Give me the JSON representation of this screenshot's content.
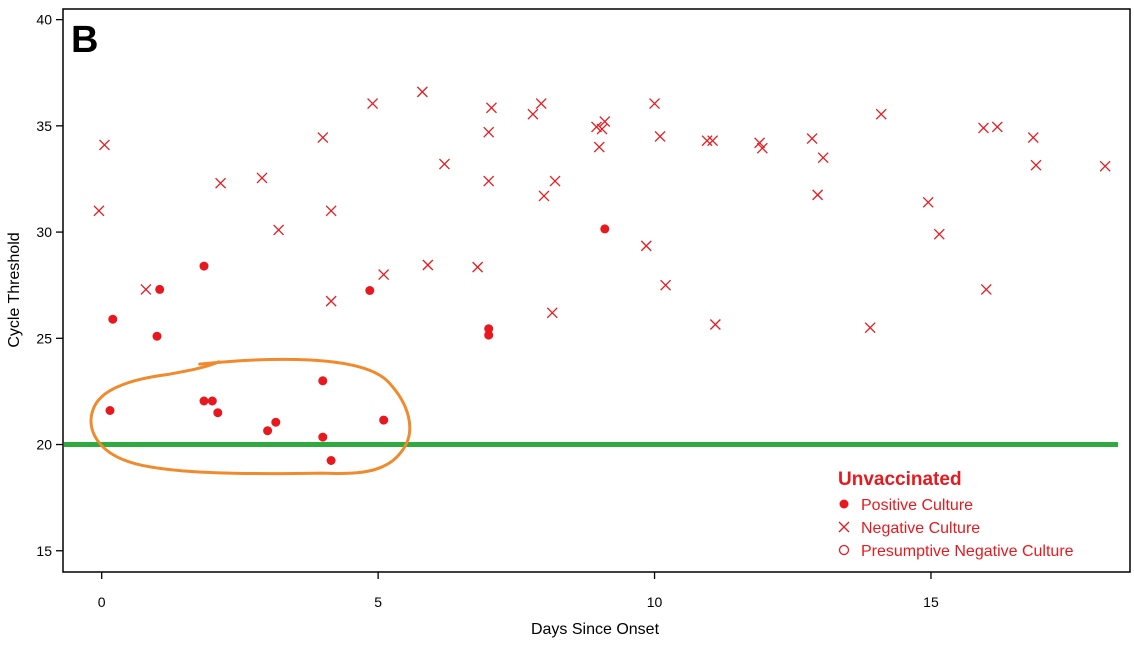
{
  "chart_data": {
    "type": "scatter",
    "panel_label": "B",
    "xlabel": "Days Since Onset",
    "ylabel": "Cycle Threshold",
    "xlim": [
      -0.7,
      18.6
    ],
    "ylim": [
      14,
      40.5
    ],
    "x_ticks": [
      0,
      5,
      10,
      15
    ],
    "y_ticks": [
      15,
      20,
      25,
      30,
      35,
      40
    ],
    "reference_line": {
      "y": 20,
      "color": "#2eaa3f"
    },
    "highlight_ellipse": {
      "color": "#f08a2c",
      "x_range": [
        -0.2,
        5.6
      ],
      "y_range": [
        18.6,
        24.0
      ]
    },
    "legend": {
      "title": "Unvaccinated",
      "position": "bottom-right",
      "color": "#e8191e",
      "entries": [
        {
          "marker": "filled-circle",
          "label": "Positive Culture"
        },
        {
          "marker": "x",
          "label": "Negative Culture"
        },
        {
          "marker": "open-circle",
          "label": "Presumptive Negative Culture"
        }
      ]
    },
    "series": [
      {
        "name": "Positive Culture",
        "marker": "filled-circle",
        "color": "#e8191e",
        "points": [
          [
            0.2,
            25.9
          ],
          [
            1.0,
            25.1
          ],
          [
            1.05,
            27.3
          ],
          [
            1.85,
            28.4
          ],
          [
            4.85,
            27.25
          ],
          [
            7.0,
            25.45
          ],
          [
            7.0,
            25.15
          ],
          [
            9.1,
            30.15
          ],
          [
            0.15,
            21.6
          ],
          [
            1.85,
            22.05
          ],
          [
            2.0,
            22.05
          ],
          [
            2.1,
            21.5
          ],
          [
            3.0,
            20.65
          ],
          [
            3.15,
            21.05
          ],
          [
            4.0,
            23.0
          ],
          [
            4.0,
            20.35
          ],
          [
            5.1,
            21.15
          ],
          [
            4.15,
            19.25
          ]
        ]
      },
      {
        "name": "Negative Culture",
        "marker": "x",
        "color": "#e8191e",
        "points": [
          [
            -0.05,
            31.0
          ],
          [
            0.05,
            34.1
          ],
          [
            0.8,
            27.3
          ],
          [
            2.15,
            32.3
          ],
          [
            2.9,
            32.55
          ],
          [
            3.2,
            30.1
          ],
          [
            4.0,
            34.45
          ],
          [
            4.15,
            31.0
          ],
          [
            4.15,
            26.75
          ],
          [
            4.9,
            36.05
          ],
          [
            5.1,
            28.0
          ],
          [
            5.8,
            36.6
          ],
          [
            5.9,
            28.45
          ],
          [
            6.2,
            33.2
          ],
          [
            6.8,
            28.35
          ],
          [
            7.0,
            34.7
          ],
          [
            7.0,
            32.4
          ],
          [
            7.05,
            35.85
          ],
          [
            7.8,
            35.55
          ],
          [
            7.95,
            36.05
          ],
          [
            8.0,
            31.7
          ],
          [
            8.15,
            26.2
          ],
          [
            8.2,
            32.4
          ],
          [
            8.95,
            34.95
          ],
          [
            9.0,
            34.0
          ],
          [
            9.05,
            34.85
          ],
          [
            9.1,
            35.2
          ],
          [
            9.85,
            29.35
          ],
          [
            10.0,
            36.05
          ],
          [
            10.1,
            34.5
          ],
          [
            10.2,
            27.5
          ],
          [
            10.95,
            34.3
          ],
          [
            11.05,
            34.3
          ],
          [
            11.1,
            25.65
          ],
          [
            11.9,
            34.2
          ],
          [
            11.95,
            33.95
          ],
          [
            12.85,
            34.4
          ],
          [
            12.95,
            31.75
          ],
          [
            13.05,
            33.5
          ],
          [
            13.9,
            25.5
          ],
          [
            14.1,
            35.55
          ],
          [
            14.95,
            31.4
          ],
          [
            15.15,
            29.9
          ],
          [
            15.95,
            34.9
          ],
          [
            16.0,
            27.3
          ],
          [
            16.2,
            34.95
          ],
          [
            16.85,
            34.45
          ],
          [
            16.9,
            33.15
          ],
          [
            18.15,
            33.1
          ]
        ]
      }
    ]
  }
}
